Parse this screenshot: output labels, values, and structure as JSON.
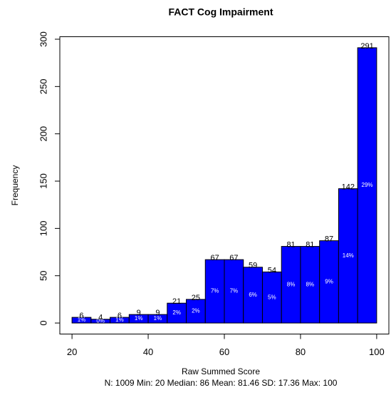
{
  "chart_data": {
    "type": "histogram",
    "title": "FACT Cog Impairment",
    "x_label": "Raw Summed Score",
    "y_label": "Frequency",
    "subtitle": "N: 1009 Min: 20  Median: 86  Mean: 81.46  SD: 17.36  Max: 100",
    "bins": [
      20,
      25,
      30,
      35,
      40,
      45,
      50,
      55,
      60,
      65,
      70,
      75,
      80,
      85,
      90,
      95,
      100
    ],
    "counts": [
      6,
      4,
      6,
      9,
      9,
      21,
      25,
      67,
      67,
      59,
      54,
      81,
      81,
      87,
      142,
      291
    ],
    "percent_labels": [
      "1%",
      "0%",
      "1%",
      "1%",
      "1%",
      "2%",
      "2%",
      "7%",
      "7%",
      "6%",
      "5%",
      "8%",
      "8%",
      "9%",
      "14%",
      "29%"
    ],
    "color": "#0000ff",
    "xlim": [
      16.8,
      103.2
    ],
    "xticks": [
      20,
      40,
      60,
      80,
      100
    ],
    "ylim": [
      -11.64,
      302.64
    ],
    "yticks": [
      0,
      50,
      100,
      150,
      200,
      250,
      300
    ]
  }
}
